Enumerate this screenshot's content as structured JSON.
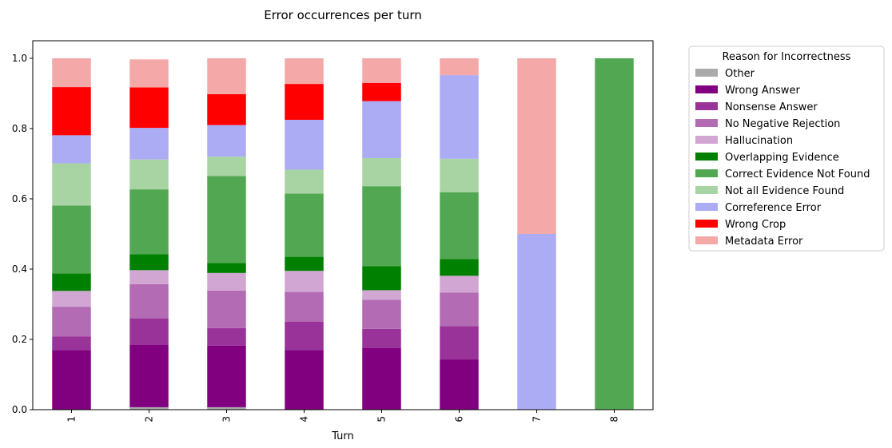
{
  "chart_data": {
    "type": "bar",
    "stacked": true,
    "title": "Error occurrences per turn",
    "xlabel": "Turn",
    "ylabel": "",
    "ylim": [
      0,
      1.05
    ],
    "yticks": [
      "0.0",
      "0.2",
      "0.4",
      "0.6",
      "0.8",
      "1.0"
    ],
    "categories": [
      "1",
      "2",
      "3",
      "4",
      "5",
      "6",
      "7",
      "8"
    ],
    "legend_title": "Reason for Incorrectness",
    "legend_position": "outside-right",
    "series": [
      {
        "name": "Other",
        "color": "#aaaaaa",
        "values": [
          0,
          0.007,
          0.007,
          0,
          0,
          0,
          0,
          0
        ]
      },
      {
        "name": "Wrong Answer",
        "color": "#800080",
        "values": [
          0.17,
          0.178,
          0.175,
          0.17,
          0.175,
          0.143,
          0,
          0
        ]
      },
      {
        "name": "Nonsense Answer",
        "color": "#993399",
        "values": [
          0.038,
          0.075,
          0.05,
          0.08,
          0.055,
          0.095,
          0,
          0
        ]
      },
      {
        "name": "No Negative Rejection",
        "color": "#b36bb3",
        "values": [
          0.085,
          0.097,
          0.107,
          0.085,
          0.083,
          0.095,
          0,
          0
        ]
      },
      {
        "name": "Hallucination",
        "color": "#d2a6d2",
        "values": [
          0.045,
          0.04,
          0.05,
          0.06,
          0.027,
          0.048,
          0,
          0
        ]
      },
      {
        "name": "Overlapping Evidence",
        "color": "#008000",
        "values": [
          0.05,
          0.045,
          0.028,
          0.04,
          0.068,
          0.048,
          0,
          0
        ]
      },
      {
        "name": "Correct Evidence Not Found",
        "color": "#52a852",
        "values": [
          0.193,
          0.185,
          0.248,
          0.18,
          0.228,
          0.19,
          0,
          1.0
        ]
      },
      {
        "name": "Not all Evidence Found",
        "color": "#a8d4a4",
        "values": [
          0.12,
          0.085,
          0.055,
          0.068,
          0.08,
          0.095,
          0,
          0
        ]
      },
      {
        "name": "Correference Error",
        "color": "#acacf4",
        "values": [
          0.08,
          0.09,
          0.09,
          0.142,
          0.162,
          0.238,
          0.5,
          0
        ]
      },
      {
        "name": "Wrong Crop",
        "color": "#ff0000",
        "values": [
          0.137,
          0.115,
          0.088,
          0.102,
          0.052,
          0,
          0,
          0
        ]
      },
      {
        "name": "Metadata Error",
        "color": "#f5a8a8",
        "values": [
          0.082,
          0.08,
          0.102,
          0.073,
          0.07,
          0.048,
          0.5,
          0
        ]
      }
    ]
  }
}
